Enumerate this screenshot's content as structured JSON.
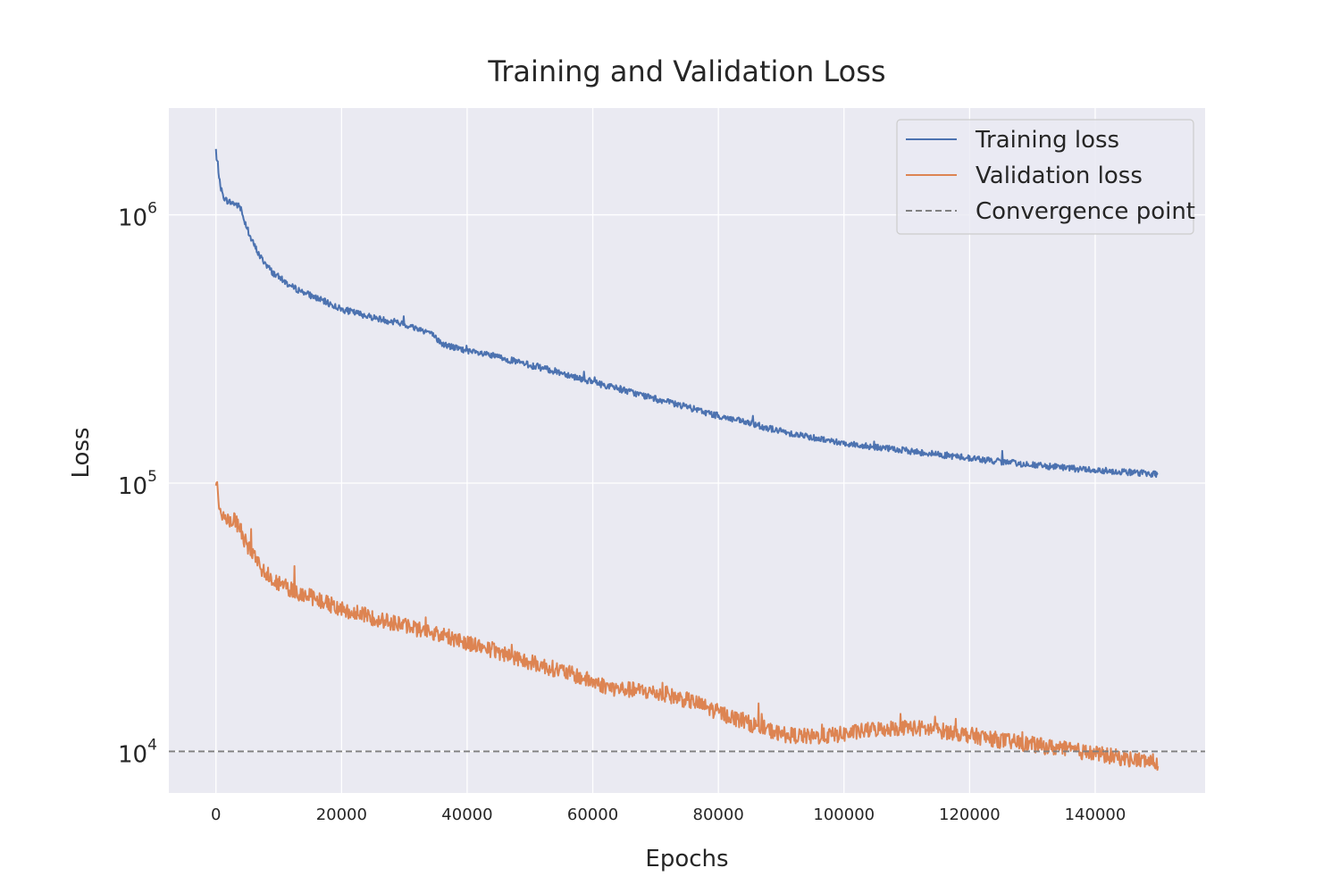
{
  "chart_data": {
    "type": "line",
    "title": "Training and Validation Loss",
    "xlabel": "Epochs",
    "ylabel": "Loss",
    "yscale": "log",
    "xlim": [
      -7500,
      157500
    ],
    "ylim": [
      7000,
      2500000
    ],
    "xticks": [
      0,
      20000,
      40000,
      60000,
      80000,
      100000,
      120000,
      140000
    ],
    "xtick_labels": [
      "0",
      "20000",
      "40000",
      "60000",
      "80000",
      "100000",
      "120000",
      "140000"
    ],
    "yticks": [
      {
        "value": 10000,
        "base": "10",
        "exp": "4"
      },
      {
        "value": 100000,
        "base": "10",
        "exp": "5"
      },
      {
        "value": 1000000,
        "base": "10",
        "exp": "6"
      }
    ],
    "grid": true,
    "legend_position": "top-right",
    "series": [
      {
        "name": "Training loss",
        "color": "#4c72b0",
        "x": [
          0,
          100,
          300,
          600,
          1000,
          1500,
          2000,
          3000,
          3800,
          4500,
          5500,
          7000,
          9000,
          12000,
          16000,
          20000,
          25000,
          30000,
          34000,
          36000,
          40000,
          45000,
          50000,
          55000,
          60000,
          65000,
          70000,
          75000,
          80000,
          85000,
          90000,
          95000,
          100000,
          105000,
          110000,
          115000,
          120000,
          125000,
          130000,
          135000,
          140000,
          145000,
          150000
        ],
        "y": [
          1750000,
          1600000,
          1550000,
          1320000,
          1200000,
          1140000,
          1120000,
          1100000,
          1070000,
          960000,
          820000,
          700000,
          610000,
          540000,
          490000,
          445000,
          415000,
          390000,
          365000,
          330000,
          310000,
          295000,
          275000,
          258000,
          238000,
          222000,
          206000,
          192000,
          178000,
          167000,
          156000,
          148000,
          141000,
          136000,
          132000,
          128000,
          124000,
          120000,
          117000,
          114000,
          112000,
          110000,
          108000
        ],
        "noise": 0.012
      },
      {
        "name": "Validation loss",
        "color": "#dd8452",
        "x": [
          0,
          200,
          600,
          1000,
          1500,
          2000,
          3000,
          3800,
          5000,
          7000,
          9500,
          12000,
          16000,
          20000,
          25000,
          30000,
          35000,
          40000,
          45000,
          50000,
          55000,
          60000,
          63000,
          68000,
          72000,
          76000,
          80000,
          85000,
          90000,
          95000,
          100000,
          105000,
          110000,
          115000,
          120000,
          125000,
          130000,
          135000,
          140000,
          145000,
          150000
        ],
        "y": [
          103000,
          95000,
          82000,
          75000,
          74000,
          73500,
          72000,
          68000,
          58000,
          49000,
          43000,
          40000,
          37000,
          34000,
          31500,
          29500,
          27500,
          25500,
          23500,
          21500,
          20000,
          18200,
          17200,
          16800,
          16200,
          15300,
          14000,
          12700,
          11600,
          11300,
          11600,
          12100,
          12300,
          12000,
          11500,
          11000,
          10600,
          10200,
          9800,
          9400,
          9100
        ],
        "noise": 0.03
      },
      {
        "name": "Convergence point",
        "color": "#808080",
        "style": "dashed",
        "y_constant": 10000
      }
    ]
  }
}
